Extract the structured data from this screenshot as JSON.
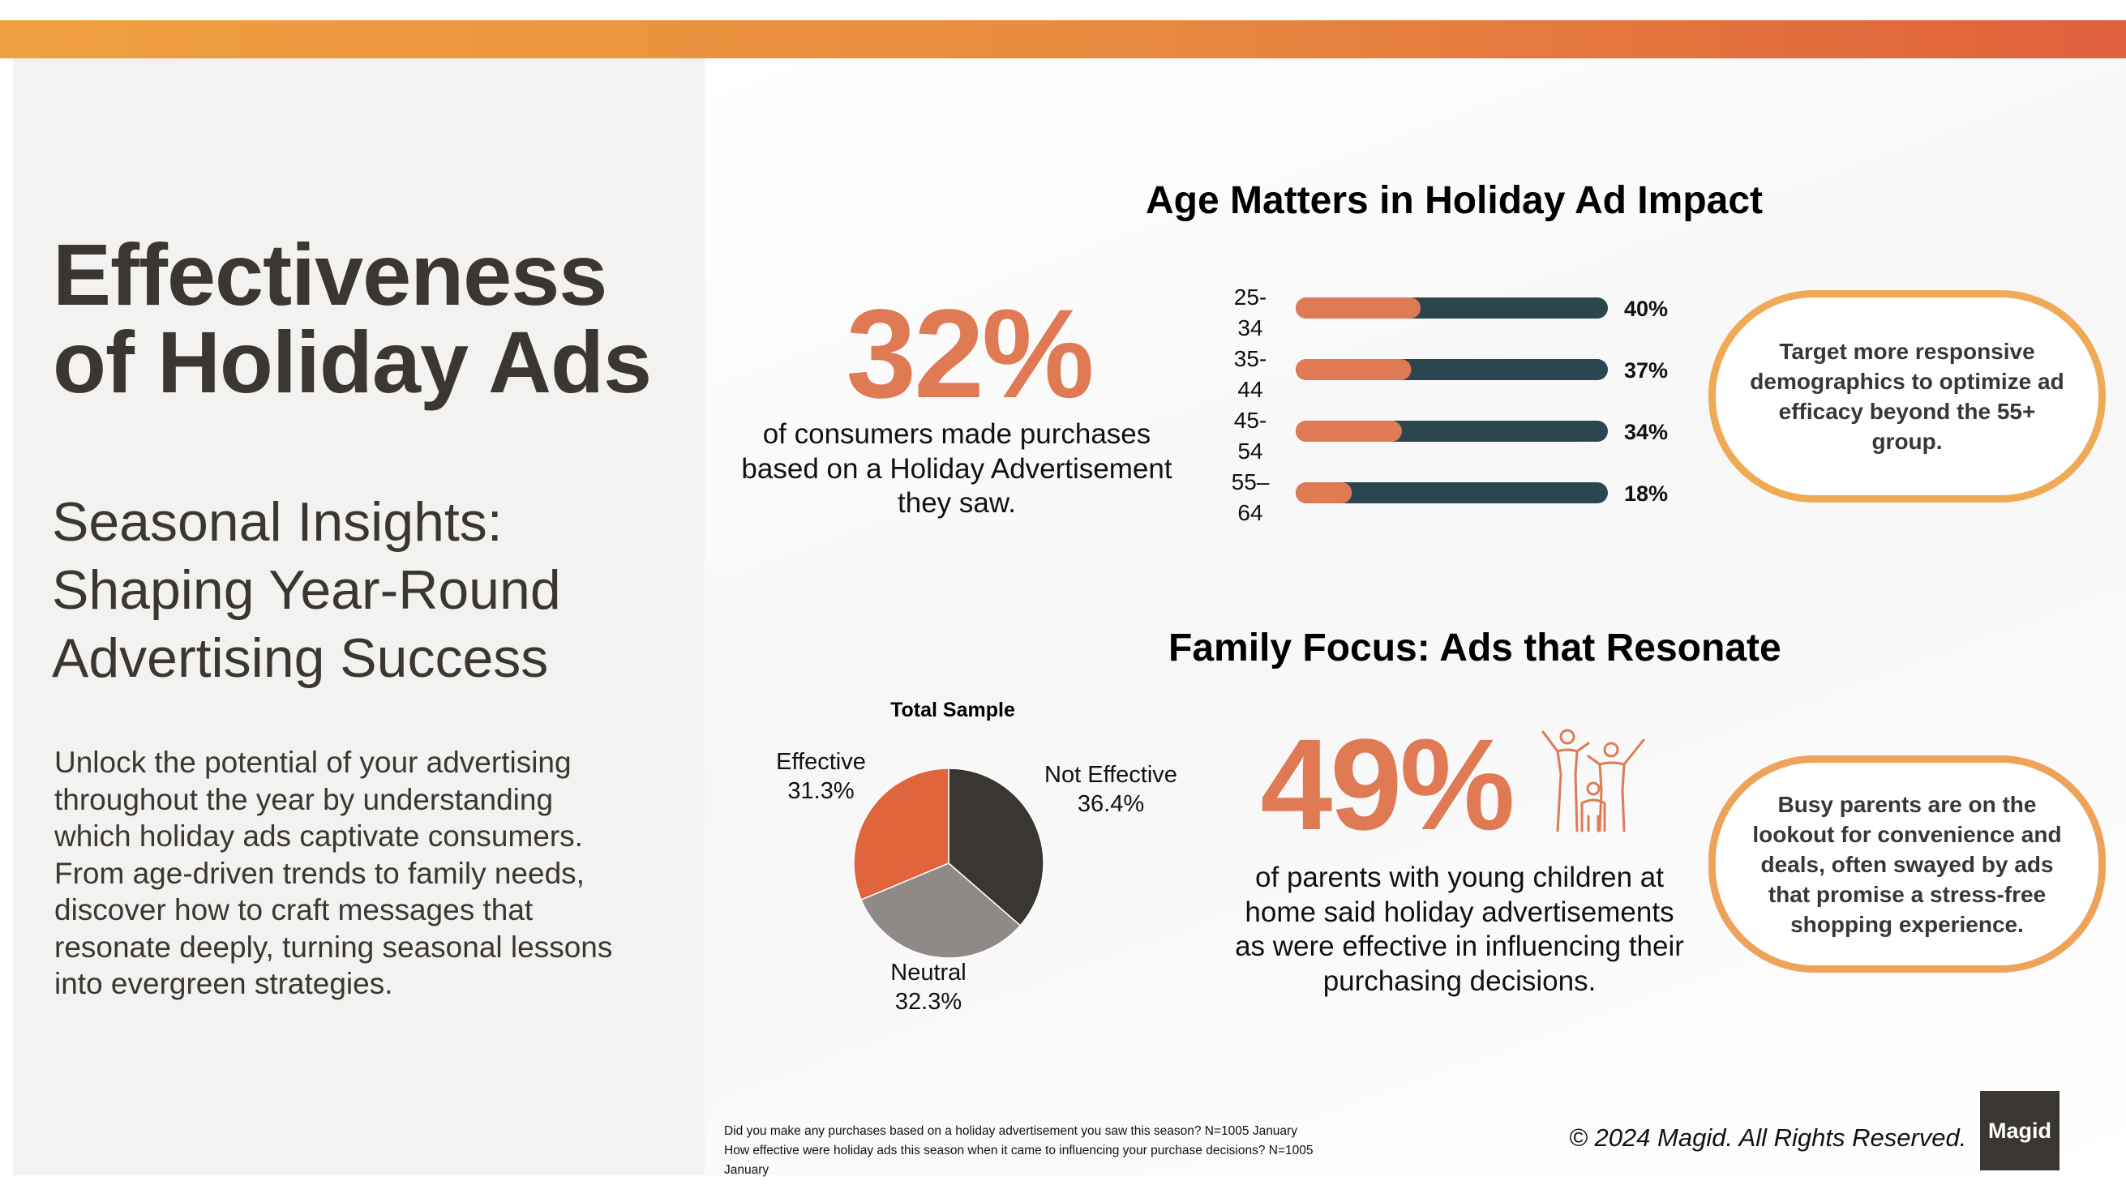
{
  "colors": {
    "accent": "#e07a55",
    "bar_track": "#2c4650",
    "pie_effective": "#e0643c",
    "pie_not_effective": "#3a3733",
    "pie_neutral": "#8f8a87",
    "callout_border": "#eea35a"
  },
  "left": {
    "title_line1": "Effectiveness",
    "title_line2": "of Holiday Ads",
    "subtitle_line1": "Seasonal Insights:",
    "subtitle_line2": "Shaping Year-Round",
    "subtitle_line3": "Advertising Success",
    "body_lines": [
      "Unlock the potential of your advertising",
      "throughout the year by understanding",
      "which holiday ads captivate consumers.",
      "From age-driven trends to family needs,",
      "discover how to craft messages that",
      "resonate deeply, turning seasonal lessons",
      "into evergreen strategies."
    ]
  },
  "age_section": {
    "title": "Age Matters in Holiday Ad Impact",
    "big_stat": "32%",
    "caption_lines": [
      "of consumers made purchases",
      "based on a Holiday Advertisement",
      "they saw."
    ],
    "callout": "Target more responsive demographics to optimize ad efficacy beyond the 55+ group."
  },
  "family_section": {
    "title": "Family Focus: Ads that Resonate",
    "big_stat": "49%",
    "icon": "family-icon",
    "caption_lines": [
      "of parents with young children at",
      "home said holiday advertisements",
      "as were effective in influencing their",
      "purchasing decisions."
    ],
    "callout": "Busy parents are on the lookout for convenience and deals, often swayed by ads that promise a stress-free shopping experience."
  },
  "chart_data": [
    {
      "type": "bar",
      "orientation": "horizontal",
      "categories": [
        "25-34",
        "35-44",
        "45-54",
        "55–64"
      ],
      "category_lines": [
        [
          "25-",
          "34"
        ],
        [
          "35-",
          "44"
        ],
        [
          "45-",
          "54"
        ],
        [
          "55–",
          "64"
        ]
      ],
      "values": [
        40,
        37,
        34,
        18
      ],
      "value_labels": [
        "40%",
        "37%",
        "34%",
        "18%"
      ],
      "xlim": [
        0,
        100
      ],
      "title": "",
      "grid": false,
      "legend": "none"
    },
    {
      "type": "pie",
      "title": "Total Sample",
      "slices": [
        {
          "label": "Not Effective",
          "value": 36.4,
          "value_label": "36.4%"
        },
        {
          "label": "Neutral",
          "value": 32.3,
          "value_label": "32.3%"
        },
        {
          "label": "Effective",
          "value": 31.3,
          "value_label": "31.3%"
        }
      ],
      "legend": "none"
    }
  ],
  "footer": {
    "footnote_lines": [
      "Did you make any purchases based on a holiday advertisement you saw this season? N=1005 January",
      "How effective were holiday ads this season when it came to influencing your purchase decisions? N=1005",
      "January"
    ],
    "copyright": "© 2024 Magid. All Rights Reserved.",
    "logo_text": "Magid"
  }
}
